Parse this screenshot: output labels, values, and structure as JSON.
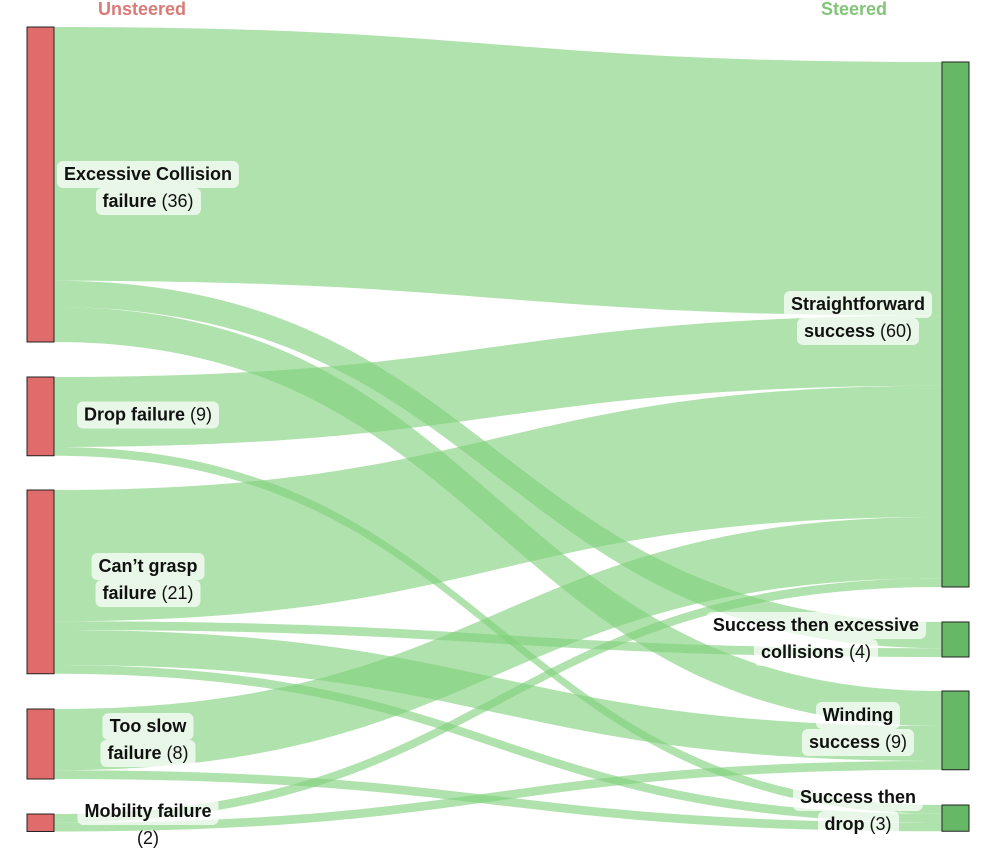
{
  "headers": {
    "left": "Unsteered",
    "right": "Steered"
  },
  "colors": {
    "left_node": "#e06b6b",
    "right_node": "#66b866",
    "link": "#7fd07a",
    "left_header": "#d97a77",
    "right_header": "#84c47a"
  },
  "left_nodes": [
    {
      "name": "Excessive Collision failure",
      "line1": "Excessive Collision",
      "line2": "failure",
      "count": "(36)",
      "value": 36
    },
    {
      "name": "Drop failure",
      "line1": "Drop failure",
      "line2": "",
      "count": "(9)",
      "value": 9
    },
    {
      "name": "Can’t grasp failure",
      "line1": "Can’t grasp",
      "line2": "failure",
      "count": "(21)",
      "value": 21
    },
    {
      "name": "Too slow failure",
      "line1": "Too slow",
      "line2": "failure",
      "count": "(8)",
      "value": 8
    },
    {
      "name": "Mobility failure",
      "line1": "Mobility failure",
      "line2": "",
      "count": "(2)",
      "value": 2
    }
  ],
  "right_nodes": [
    {
      "name": "Straightforward success",
      "line1": "Straightforward",
      "line2": "success",
      "count": "(60)",
      "value": 60
    },
    {
      "name": "Success then excessive collisions",
      "line1": "Success then excessive",
      "line2": "collisions",
      "count": "(4)",
      "value": 4
    },
    {
      "name": "Winding success",
      "line1": "Winding",
      "line2": "success",
      "count": "(9)",
      "value": 9
    },
    {
      "name": "Success then drop",
      "line1": "Success then",
      "line2": "drop",
      "count": "(3)",
      "value": 3
    }
  ],
  "flows": [
    {
      "from": "Excessive Collision failure",
      "to": "Straightforward success",
      "value": 29
    },
    {
      "from": "Excessive Collision failure",
      "to": "Success then excessive collisions",
      "value": 3
    },
    {
      "from": "Excessive Collision failure",
      "to": "Winding success",
      "value": 4
    },
    {
      "from": "Drop failure",
      "to": "Straightforward success",
      "value": 8
    },
    {
      "from": "Drop failure",
      "to": "Success then drop",
      "value": 1
    },
    {
      "from": "Can’t grasp failure",
      "to": "Straightforward success",
      "value": 15
    },
    {
      "from": "Can’t grasp failure",
      "to": "Success then excessive collisions",
      "value": 1
    },
    {
      "from": "Can’t grasp failure",
      "to": "Winding success",
      "value": 4
    },
    {
      "from": "Can’t grasp failure",
      "to": "Success then drop",
      "value": 1
    },
    {
      "from": "Too slow failure",
      "to": "Straightforward success",
      "value": 7
    },
    {
      "from": "Too slow failure",
      "to": "Success then drop",
      "value": 1
    },
    {
      "from": "Mobility failure",
      "to": "Straightforward success",
      "value": 1
    },
    {
      "from": "Mobility failure",
      "to": "Winding success",
      "value": 1
    }
  ]
}
